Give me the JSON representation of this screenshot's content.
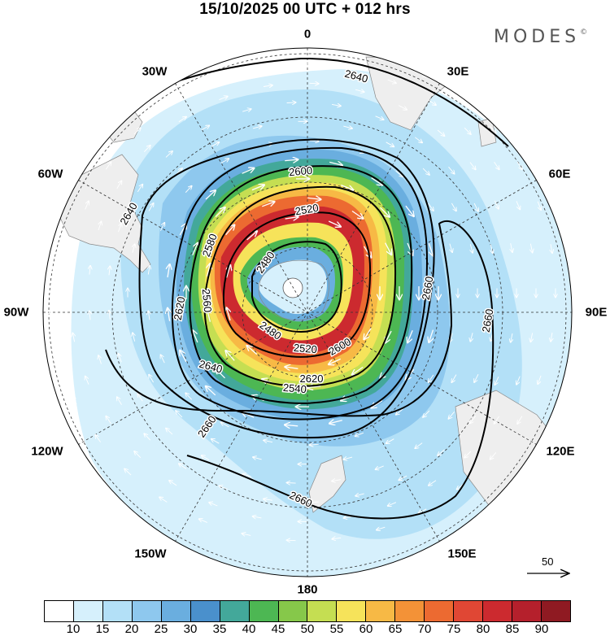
{
  "header": {
    "title": "15/10/2025  00 UTC  + 012 hrs",
    "brand": "MODES",
    "brand_mark": "©"
  },
  "map": {
    "projection": "polar-stereographic-south",
    "longitude_labels": {
      "lon_0": "0",
      "lon_30e": "30E",
      "lon_60e": "60E",
      "lon_90e": "90E",
      "lon_120e": "120E",
      "lon_150e": "150E",
      "lon_180": "180",
      "lon_150w": "150W",
      "lon_120w": "120W",
      "lon_90w": "90W",
      "lon_60w": "60W",
      "lon_30w": "30W"
    },
    "contour_labels": [
      "2480",
      "2480",
      "2520",
      "2520",
      "2540",
      "2560",
      "2580",
      "2600",
      "2600",
      "2620",
      "2620",
      "2640",
      "2640",
      "2640",
      "2660",
      "2660",
      "2660",
      "2660"
    ],
    "reference_vector": "50"
  },
  "colorbar": {
    "colors": [
      "#ffffff",
      "#d6f0fc",
      "#b3e0f7",
      "#8ec8ee",
      "#6aaedf",
      "#4a90cc",
      "#43a89a",
      "#4db753",
      "#86c84a",
      "#c5de52",
      "#f6e35a",
      "#f7b945",
      "#f39237",
      "#ec6a31",
      "#e04734",
      "#cc2a2f",
      "#b5202c",
      "#8f1a22"
    ],
    "ticks": [
      "10",
      "15",
      "20",
      "25",
      "30",
      "35",
      "40",
      "45",
      "50",
      "55",
      "60",
      "65",
      "70",
      "75",
      "80",
      "85",
      "90"
    ]
  }
}
